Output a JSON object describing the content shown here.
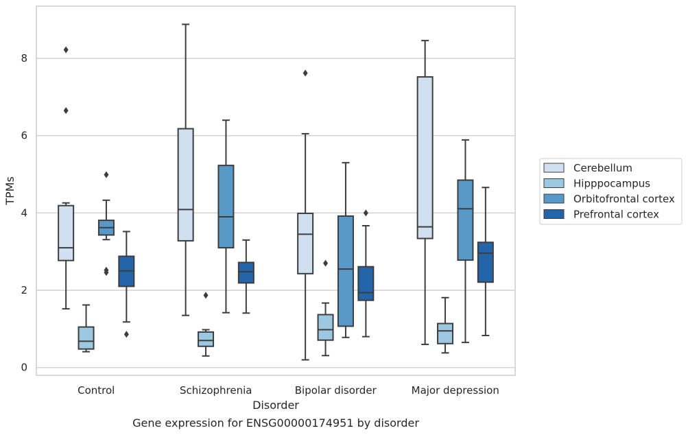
{
  "chart_data": {
    "type": "box",
    "caption": "Gene expression for ENSG00000174951 by disorder",
    "xlabel": "Disorder",
    "ylabel": "TPMs",
    "ylim": [
      -0.2,
      9.35
    ],
    "yticks": [
      0,
      2,
      4,
      6,
      8
    ],
    "grid": "horizontal",
    "legend_position": "right",
    "categories": [
      "Control",
      "Schizophrenia",
      "Bipolar disorder",
      "Major depression"
    ],
    "series": [
      {
        "name": "Cerebellum",
        "color": "#d0e0f1",
        "boxes": [
          {
            "whislo": 1.52,
            "q1": 2.77,
            "med": 3.1,
            "q3": 4.19,
            "whishi": 4.26,
            "fliers": [
              8.22,
              6.65
            ]
          },
          {
            "whislo": 1.35,
            "q1": 3.28,
            "med": 4.09,
            "q3": 6.18,
            "whishi": 8.88,
            "fliers": []
          },
          {
            "whislo": 0.2,
            "q1": 2.43,
            "med": 3.45,
            "q3": 3.99,
            "whishi": 6.05,
            "fliers": [
              7.62
            ]
          },
          {
            "whislo": 0.6,
            "q1": 3.34,
            "med": 3.64,
            "q3": 7.52,
            "whishi": 8.46,
            "fliers": []
          }
        ]
      },
      {
        "name": "Hipppocampus",
        "color": "#9dc8e1",
        "boxes": [
          {
            "whislo": 0.41,
            "q1": 0.48,
            "med": 0.68,
            "q3": 1.05,
            "whishi": 1.62,
            "fliers": []
          },
          {
            "whislo": 0.3,
            "q1": 0.55,
            "med": 0.7,
            "q3": 0.92,
            "whishi": 0.98,
            "fliers": [
              1.87
            ]
          },
          {
            "whislo": 0.31,
            "q1": 0.71,
            "med": 0.98,
            "q3": 1.37,
            "whishi": 1.67,
            "fliers": [
              2.7
            ]
          },
          {
            "whislo": 0.38,
            "q1": 0.62,
            "med": 0.95,
            "q3": 1.14,
            "whishi": 1.81,
            "fliers": []
          }
        ]
      },
      {
        "name": "Orbitofrontal cortex",
        "color": "#5899c8",
        "boxes": [
          {
            "whislo": 3.31,
            "q1": 3.43,
            "med": 3.62,
            "q3": 3.81,
            "whishi": 4.33,
            "fliers": [
              4.99,
              2.52,
              2.46
            ]
          },
          {
            "whislo": 1.42,
            "q1": 3.1,
            "med": 3.9,
            "q3": 5.23,
            "whishi": 6.4,
            "fliers": []
          },
          {
            "whislo": 0.78,
            "q1": 1.07,
            "med": 2.55,
            "q3": 3.92,
            "whishi": 5.3,
            "fliers": []
          },
          {
            "whislo": 0.65,
            "q1": 2.78,
            "med": 4.11,
            "q3": 4.85,
            "whishi": 5.89,
            "fliers": []
          }
        ]
      },
      {
        "name": "Prefrontal cortex",
        "color": "#2464a8",
        "boxes": [
          {
            "whislo": 1.18,
            "q1": 2.1,
            "med": 2.5,
            "q3": 2.88,
            "whishi": 3.52,
            "fliers": [
              0.86
            ]
          },
          {
            "whislo": 1.41,
            "q1": 2.19,
            "med": 2.48,
            "q3": 2.72,
            "whishi": 3.3,
            "fliers": []
          },
          {
            "whislo": 0.8,
            "q1": 1.74,
            "med": 1.94,
            "q3": 2.61,
            "whishi": 3.67,
            "fliers": [
              4.0
            ]
          },
          {
            "whislo": 0.83,
            "q1": 2.21,
            "med": 2.96,
            "q3": 3.24,
            "whishi": 4.66,
            "fliers": []
          }
        ]
      }
    ]
  }
}
